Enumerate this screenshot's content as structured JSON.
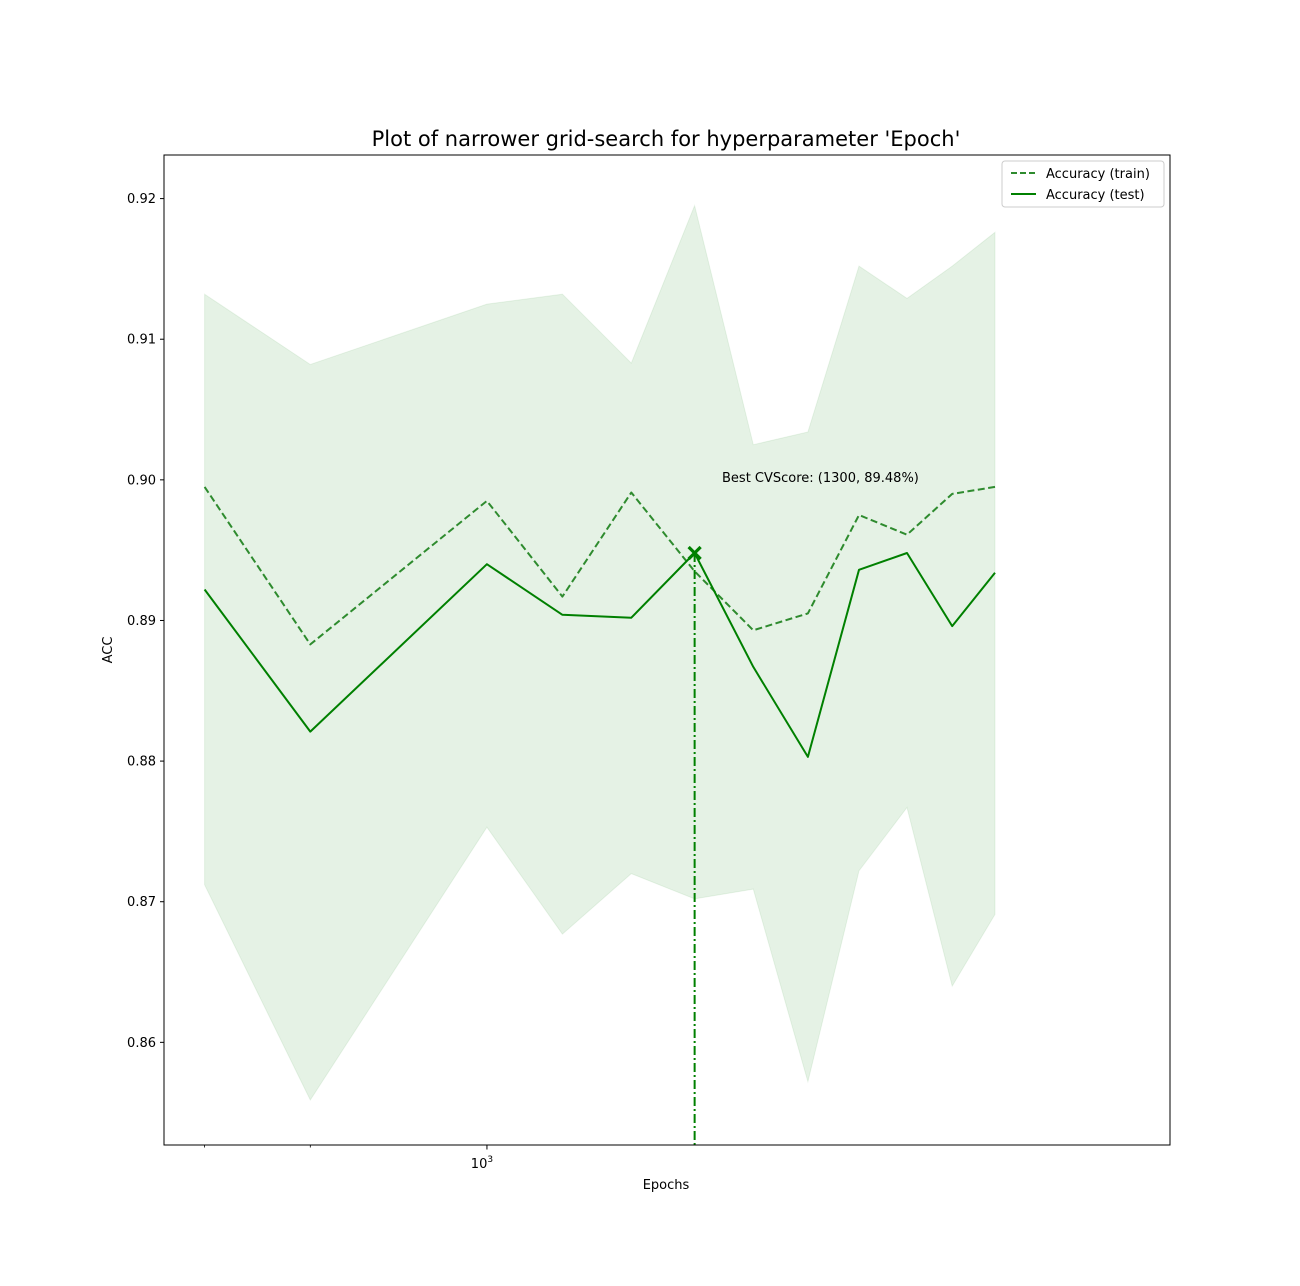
{
  "chart_data": {
    "type": "line",
    "title": "Plot of narrower grid-search for hyperparameter 'Epoch'",
    "xlabel": "Epochs",
    "ylabel": "ACC",
    "xscale": "log",
    "xlim": [
      665,
      2370
    ],
    "ylim": [
      0.8527,
      0.9231
    ],
    "x_tick_labels": [
      {
        "value": 1000,
        "base": "10",
        "exponent": "3"
      }
    ],
    "x_minor_ticks": [
      700,
      800
    ],
    "y_ticks": [
      0.86,
      0.87,
      0.88,
      0.89,
      0.9,
      0.91,
      0.92
    ],
    "y_tick_labels": [
      "0.86",
      "0.87",
      "0.88",
      "0.89",
      "0.90",
      "0.91",
      "0.92"
    ],
    "x": [
      700,
      800,
      1000,
      1100,
      1200,
      1300,
      1400,
      1500,
      1600,
      1700,
      1800,
      1900
    ],
    "series": [
      {
        "name": "Accuracy (train)",
        "style": "dashed",
        "color": "#2e8b2e",
        "values": [
          0.8995,
          0.8883,
          0.8985,
          0.8917,
          0.8991,
          0.8935,
          0.8893,
          0.8905,
          0.8975,
          0.8961,
          0.899,
          0.8995
        ]
      },
      {
        "name": "Accuracy (test)",
        "style": "solid",
        "color": "#008000",
        "values": [
          0.8922,
          0.8821,
          0.894,
          0.8904,
          0.8902,
          0.8948,
          0.8867,
          0.8803,
          0.8936,
          0.8948,
          0.8896,
          0.8934
        ]
      }
    ],
    "band": {
      "color": "#008000",
      "opacity": 0.1,
      "upper": [
        0.9132,
        0.9082,
        0.9125,
        0.9132,
        0.9083,
        0.9195,
        0.9025,
        0.9034,
        0.9152,
        0.9129,
        0.9152,
        0.9176
      ],
      "lower": [
        0.8712,
        0.8559,
        0.8753,
        0.8677,
        0.872,
        0.8702,
        0.8709,
        0.8572,
        0.8722,
        0.8767,
        0.864,
        0.8691
      ]
    },
    "best_point": {
      "x": 1300,
      "y": 0.8948,
      "marker": "x",
      "color": "#008000"
    },
    "best_line": {
      "x": 1300,
      "style": "dashdot",
      "color": "#008000"
    },
    "annotation": {
      "text": "Best CVScore: (1300, 89.48%)",
      "x": 1300,
      "y": 0.8999
    },
    "legend": {
      "position": "top-right",
      "entries": [
        "Accuracy (train)",
        "Accuracy (test)"
      ]
    }
  }
}
